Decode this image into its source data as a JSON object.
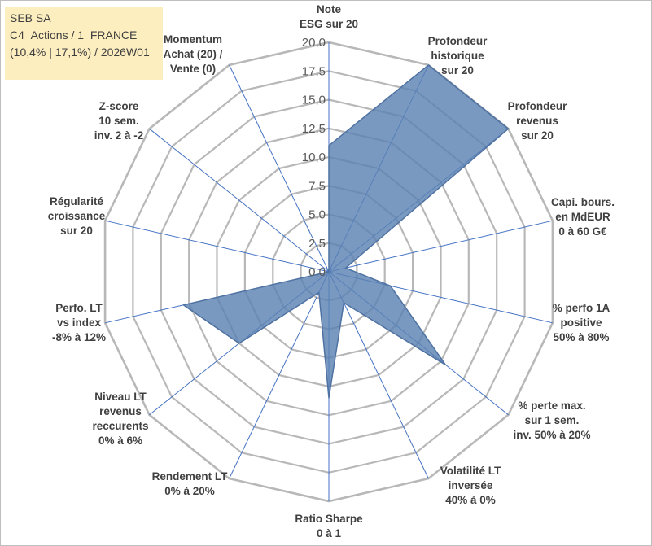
{
  "info_box": {
    "line1": "SEB SA",
    "line2": "C4_Actions / 1_FRANCE",
    "line3": "(10,4% | 17,1%) / 2026W01"
  },
  "chart_data": {
    "type": "radar",
    "grid": true,
    "rlim": [
      0,
      20
    ],
    "ticks": [
      "0,0",
      "2,5",
      "5,0",
      "7,5",
      "10,0",
      "12,5",
      "15,0",
      "17,5",
      "20,0"
    ],
    "axes": [
      [
        "Note",
        "ESG sur 20"
      ],
      [
        "Profondeur",
        "historique",
        "sur 20"
      ],
      [
        "Profondeur",
        "revenus",
        "sur 20"
      ],
      [
        "Capi. bours.",
        "en MdEUR",
        "0 à 60 G€"
      ],
      [
        "% perfo 1A",
        "positive",
        "50% à 80%"
      ],
      [
        "% perte max.",
        "sur 1 sem.",
        "inv. 50% à 20%"
      ],
      [
        "Volatilité LT",
        "inversée",
        "40% à 0%"
      ],
      [
        "Ratio Sharpe",
        "0 à 1"
      ],
      [
        "Rendement LT",
        "0% à 20%"
      ],
      [
        "Niveau LT",
        "revenus",
        "reccurents",
        "0% à 6%"
      ],
      [
        "Perfo. LT",
        "vs index",
        "-8% à 12%"
      ],
      [
        "Régularité",
        "croissance",
        "sur 20"
      ],
      [
        "Z-score",
        "10 sem.",
        "inv. 2 à -2"
      ],
      [
        "Momentum",
        "Achat (20) /",
        "Vente (0)"
      ]
    ],
    "series": [
      {
        "values": [
          11,
          20,
          20,
          1.5,
          5.5,
          13,
          3,
          11,
          2,
          10,
          13,
          0,
          0,
          0
        ]
      }
    ],
    "colors": {
      "fill": "#5b82b3",
      "stroke": "#4f72a2",
      "grid": "#b8b8b8",
      "spoke": "#4472c4"
    }
  }
}
